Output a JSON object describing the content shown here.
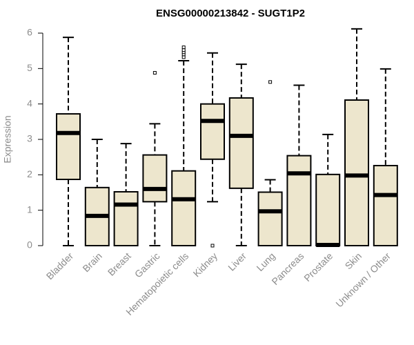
{
  "chart_data": {
    "type": "boxplot",
    "title": "ENSG00000213842 - SUGT1P2",
    "xlabel": "",
    "ylabel": "Expression",
    "ylim": [
      0,
      6
    ],
    "yticks": [
      0,
      1,
      2,
      3,
      4,
      5,
      6
    ],
    "grid": false,
    "legend": "none",
    "box_fill": "#ede6cd",
    "box_stroke": "#000000",
    "categories": [
      "Bladder",
      "Brain",
      "Breast",
      "Gastric",
      "Hematopoietic cells",
      "Kidney",
      "Liver",
      "Lung",
      "Pancreas",
      "Prostate",
      "Skin",
      "Unknown / Other"
    ],
    "boxes": [
      {
        "min": 0.0,
        "q1": 1.87,
        "median": 3.18,
        "q3": 3.72,
        "max": 5.88,
        "outliers": []
      },
      {
        "min": 0.0,
        "q1": 0.0,
        "median": 0.84,
        "q3": 1.64,
        "max": 3.0,
        "outliers": []
      },
      {
        "min": 0.0,
        "q1": 0.0,
        "median": 1.16,
        "q3": 1.52,
        "max": 2.88,
        "outliers": []
      },
      {
        "min": 0.0,
        "q1": 1.24,
        "median": 1.6,
        "q3": 2.56,
        "max": 3.44,
        "outliers": [
          4.88
        ]
      },
      {
        "min": 0.0,
        "q1": 0.0,
        "median": 1.31,
        "q3": 2.11,
        "max": 5.22,
        "outliers": [
          5.32,
          5.4,
          5.46,
          5.52,
          5.6
        ]
      },
      {
        "min": 1.24,
        "q1": 2.44,
        "median": 3.52,
        "q3": 4.0,
        "max": 5.44,
        "outliers": [
          0.0
        ]
      },
      {
        "min": 0.0,
        "q1": 1.62,
        "median": 3.1,
        "q3": 4.17,
        "max": 5.12,
        "outliers": []
      },
      {
        "min": 0.0,
        "q1": 0.0,
        "median": 0.97,
        "q3": 1.51,
        "max": 1.86,
        "outliers": [
          4.62
        ]
      },
      {
        "min": 0.0,
        "q1": 0.0,
        "median": 2.04,
        "q3": 2.54,
        "max": 4.53,
        "outliers": []
      },
      {
        "min": 0.0,
        "q1": 0.0,
        "median": 0.02,
        "q3": 2.01,
        "max": 3.14,
        "outliers": []
      },
      {
        "min": 0.0,
        "q1": 0.0,
        "median": 1.98,
        "q3": 4.11,
        "max": 6.12,
        "outliers": []
      },
      {
        "min": 0.0,
        "q1": 0.0,
        "median": 1.43,
        "q3": 2.26,
        "max": 4.99,
        "outliers": []
      }
    ]
  }
}
